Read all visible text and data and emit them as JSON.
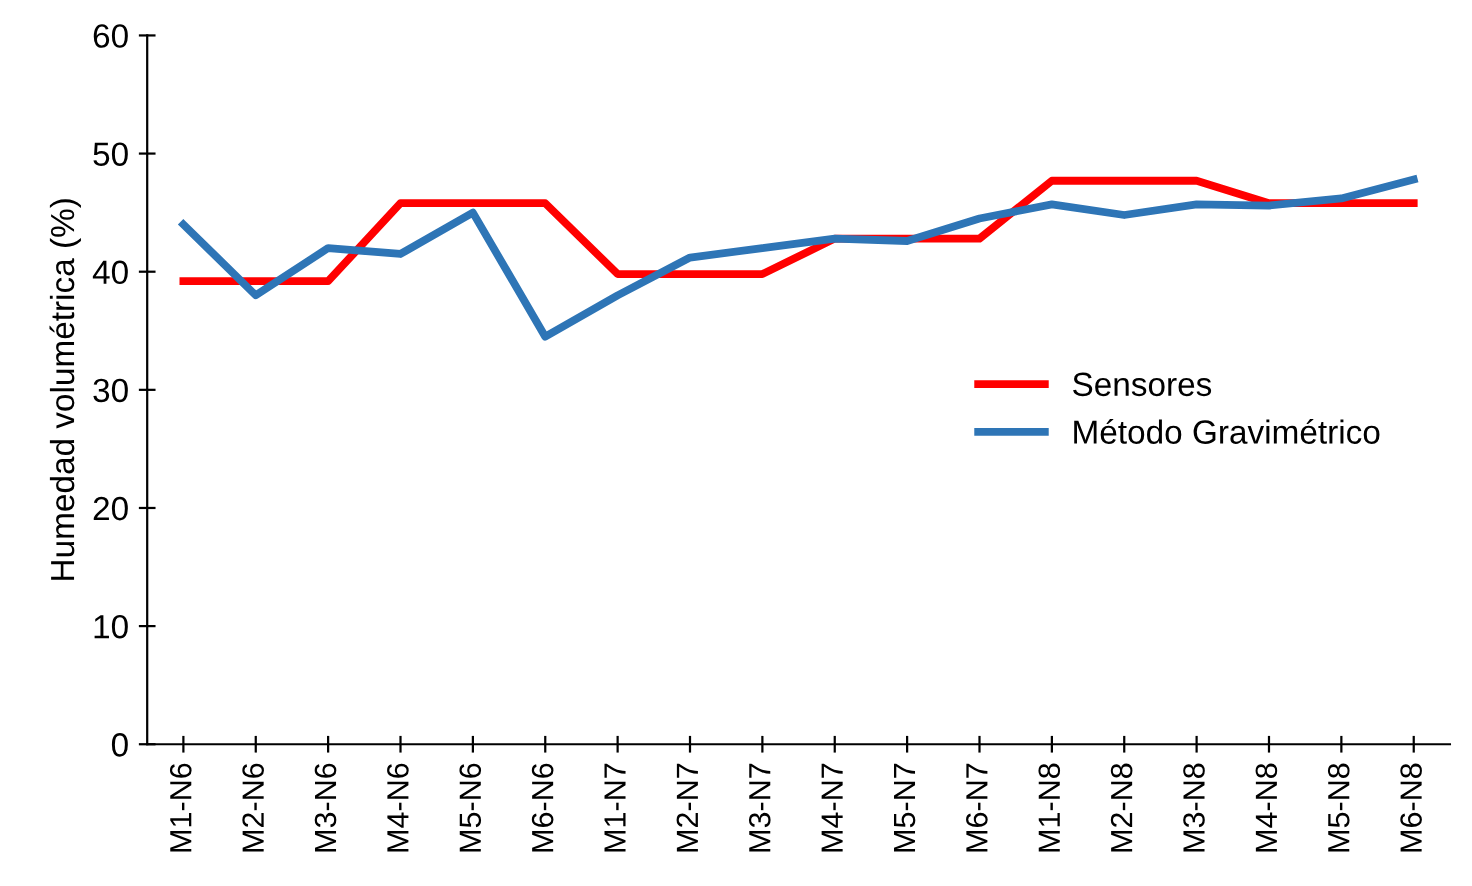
{
  "chart_data": {
    "type": "line",
    "ylabel": "Humedad volumétrica (%)",
    "categories": [
      "M1-N6",
      "M2-N6",
      "M3-N6",
      "M4-N6",
      "M5-N6",
      "M6-N6",
      "M1-N7",
      "M2-N7",
      "M3-N7",
      "M4-N7",
      "M5-N7",
      "M6-N7",
      "M1-N8",
      "M2-N8",
      "M3-N8",
      "M4-N8",
      "M5-N8",
      "M6-N8"
    ],
    "series": [
      {
        "name": "Sensores",
        "color": "#ff0000",
        "values": [
          39.2,
          39.2,
          39.2,
          45.8,
          45.8,
          45.8,
          39.8,
          39.8,
          39.8,
          42.8,
          42.8,
          42.8,
          47.7,
          47.7,
          47.7,
          45.8,
          45.8,
          45.8
        ]
      },
      {
        "name": "Método Gravimétrico",
        "color": "#2e75b6",
        "values": [
          44.0,
          38.0,
          42.0,
          41.5,
          45.0,
          34.5,
          38.0,
          41.2,
          42.0,
          42.8,
          42.6,
          44.5,
          45.7,
          44.8,
          45.7,
          45.6,
          46.2,
          47.8
        ]
      }
    ],
    "ylim": [
      0,
      60
    ],
    "yticks": [
      0,
      10,
      20,
      30,
      40,
      50,
      60
    ],
    "grid": false,
    "legend": "right",
    "marker": "none",
    "line_style": "solid"
  }
}
